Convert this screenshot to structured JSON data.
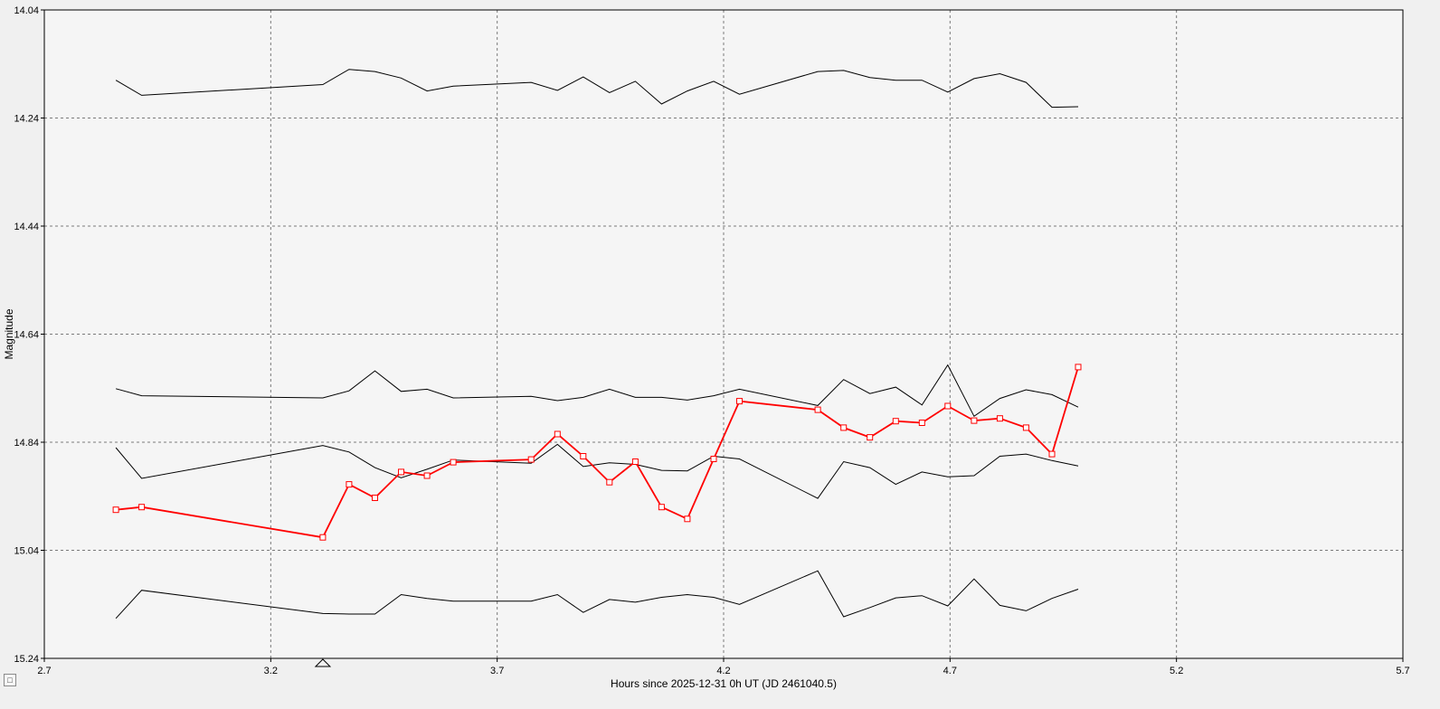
{
  "chart_data": {
    "type": "line",
    "xlabel": "Hours since 2025-12-31 0h UT (JD 2461040.5)",
    "ylabel": "Magnitude",
    "xlim": [
      2.7,
      5.7
    ],
    "ylim": [
      14.04,
      15.24
    ],
    "y_inverted": true,
    "grid": true,
    "x_ticks": [
      "2.7",
      "3.2",
      "3.7",
      "4.2",
      "4.7",
      "5.2",
      "5.7"
    ],
    "y_ticks": [
      "14.04",
      "14.24",
      "14.44",
      "14.64",
      "14.84",
      "15.04",
      "15.24"
    ],
    "marker_x": 3.315,
    "colors": {
      "target": "#ff0000",
      "comparison": "#000000",
      "plot_bg": "#f5f5f5",
      "grid": "#7a7a7a"
    },
    "series": [
      {
        "role": "target",
        "markers": true,
        "x": [
          2.858,
          2.915,
          3.315,
          3.373,
          3.43,
          3.488,
          3.545,
          3.603,
          3.775,
          3.833,
          3.89,
          3.948,
          4.005,
          4.063,
          4.12,
          4.178,
          4.235,
          4.408,
          4.465,
          4.523,
          4.58,
          4.638,
          4.695,
          4.753,
          4.81,
          4.868,
          4.925,
          4.983
        ],
        "y": [
          14.965,
          14.96,
          15.016,
          14.918,
          14.943,
          14.895,
          14.902,
          14.877,
          14.872,
          14.825,
          14.866,
          14.914,
          14.876,
          14.96,
          14.982,
          14.871,
          14.764,
          14.78,
          14.813,
          14.831,
          14.801,
          14.804,
          14.773,
          14.8,
          14.796,
          14.813,
          14.862,
          14.701
        ]
      },
      {
        "role": "comparison",
        "markers": false,
        "x": [
          2.858,
          2.915,
          3.315,
          3.373,
          3.43,
          3.488,
          3.545,
          3.603,
          3.775,
          3.833,
          3.89,
          3.948,
          4.005,
          4.063,
          4.12,
          4.178,
          4.235,
          4.408,
          4.465,
          4.523,
          4.58,
          4.638,
          4.695,
          4.753,
          4.81,
          4.868,
          4.925,
          4.983
        ],
        "y": [
          14.17,
          14.198,
          14.178,
          14.15,
          14.154,
          14.166,
          14.19,
          14.181,
          14.174,
          14.189,
          14.164,
          14.193,
          14.172,
          14.214,
          14.19,
          14.172,
          14.196,
          14.154,
          14.152,
          14.165,
          14.17,
          14.17,
          14.192,
          14.167,
          14.158,
          14.174,
          14.22,
          14.219
        ]
      },
      {
        "role": "comparison",
        "markers": false,
        "x": [
          2.858,
          2.915,
          3.315,
          3.373,
          3.43,
          3.488,
          3.545,
          3.603,
          3.775,
          3.833,
          3.89,
          3.948,
          4.005,
          4.063,
          4.12,
          4.178,
          4.235,
          4.408,
          4.465,
          4.523,
          4.58,
          4.638,
          4.695,
          4.753,
          4.81,
          4.868,
          4.925,
          4.983
        ],
        "y": [
          14.741,
          14.754,
          14.758,
          14.745,
          14.708,
          14.746,
          14.742,
          14.758,
          14.755,
          14.763,
          14.757,
          14.742,
          14.757,
          14.757,
          14.762,
          14.754,
          14.742,
          14.772,
          14.724,
          14.75,
          14.738,
          14.771,
          14.697,
          14.792,
          14.759,
          14.743,
          14.752,
          14.775
        ]
      },
      {
        "role": "comparison",
        "markers": false,
        "x": [
          2.858,
          2.915,
          3.315,
          3.373,
          3.43,
          3.488,
          3.545,
          3.603,
          3.775,
          3.833,
          3.89,
          3.948,
          4.005,
          4.063,
          4.12,
          4.178,
          4.235,
          4.408,
          4.465,
          4.523,
          4.58,
          4.638,
          4.695,
          4.753,
          4.81,
          4.868,
          4.925,
          4.983
        ],
        "y": [
          14.85,
          14.907,
          14.846,
          14.858,
          14.887,
          14.906,
          14.89,
          14.873,
          14.879,
          14.844,
          14.885,
          14.878,
          14.881,
          14.892,
          14.893,
          14.866,
          14.871,
          14.944,
          14.876,
          14.887,
          14.918,
          14.895,
          14.904,
          14.902,
          14.866,
          14.862,
          14.874,
          14.884
        ]
      },
      {
        "role": "comparison",
        "markers": false,
        "x": [
          2.858,
          2.915,
          3.315,
          3.373,
          3.43,
          3.488,
          3.545,
          3.603,
          3.775,
          3.833,
          3.89,
          3.948,
          4.005,
          4.063,
          4.12,
          4.178,
          4.235,
          4.408,
          4.465,
          4.523,
          4.58,
          4.638,
          4.695,
          4.753,
          4.81,
          4.868,
          4.925,
          4.983
        ],
        "y": [
          15.166,
          15.114,
          15.157,
          15.158,
          15.158,
          15.122,
          15.129,
          15.134,
          15.134,
          15.122,
          15.155,
          15.131,
          15.136,
          15.127,
          15.122,
          15.127,
          15.14,
          15.078,
          15.163,
          15.146,
          15.128,
          15.124,
          15.143,
          15.093,
          15.142,
          15.152,
          15.129,
          15.112
        ]
      }
    ]
  }
}
